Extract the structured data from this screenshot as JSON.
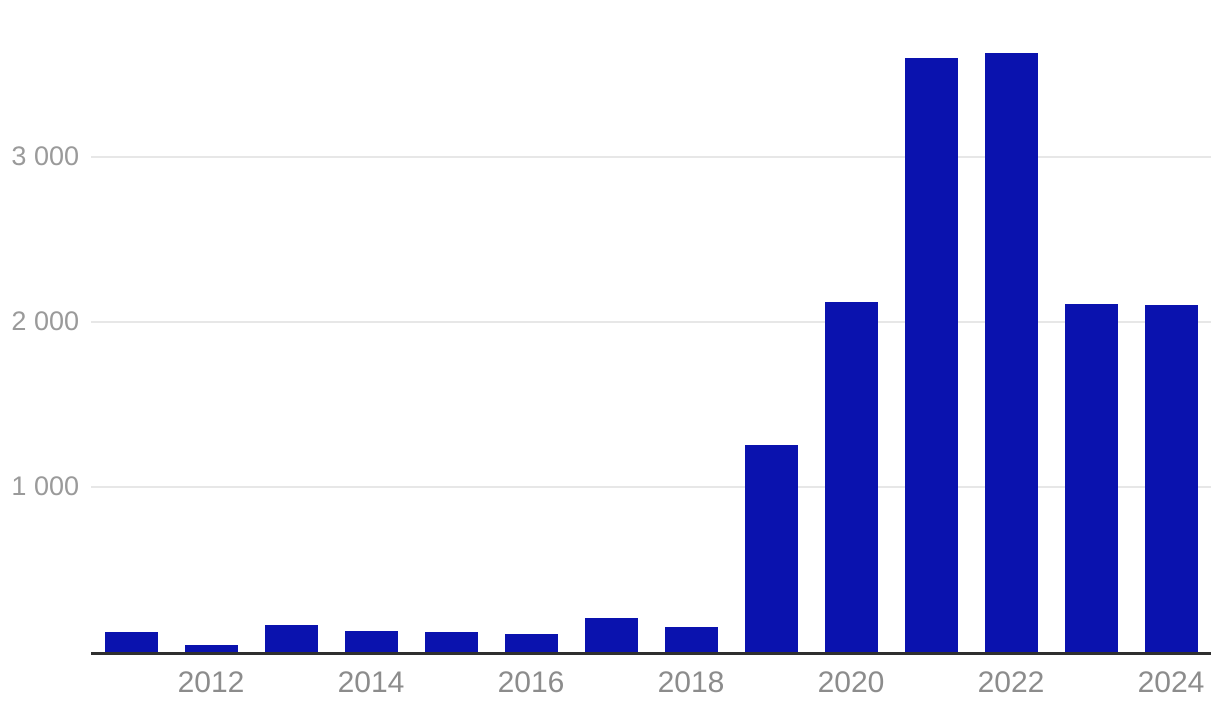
{
  "chart_data": {
    "type": "bar",
    "title": "",
    "xlabel": "",
    "ylabel": "",
    "categories": [
      2011,
      2012,
      2013,
      2014,
      2015,
      2016,
      2017,
      2018,
      2019,
      2020,
      2021,
      2022,
      2023,
      2024
    ],
    "values": [
      120,
      40,
      165,
      125,
      120,
      110,
      205,
      150,
      1255,
      2120,
      3600,
      3630,
      2110,
      2100
    ],
    "ylim": [
      0,
      3800
    ],
    "grid": true,
    "legend": false,
    "y_ticks": [
      {
        "value": 1000,
        "label": "1 000"
      },
      {
        "value": 2000,
        "label": "2 000"
      },
      {
        "value": 3000,
        "label": "3 000"
      }
    ],
    "x_ticks": [
      {
        "category": 2012,
        "label": "2012"
      },
      {
        "category": 2014,
        "label": "2014"
      },
      {
        "category": 2016,
        "label": "2016"
      },
      {
        "category": 2018,
        "label": "2018"
      },
      {
        "category": 2020,
        "label": "2020"
      },
      {
        "category": 2022,
        "label": "2022"
      },
      {
        "category": 2024,
        "label": "2024"
      }
    ]
  },
  "colors": {
    "bar": "#0a12ae",
    "gridline": "#e7e7e7",
    "axis_line": "#2f2f2f",
    "y_tick_label": "#9a9a9a",
    "x_tick_label": "#8c8c8c",
    "background": "#ffffff"
  }
}
